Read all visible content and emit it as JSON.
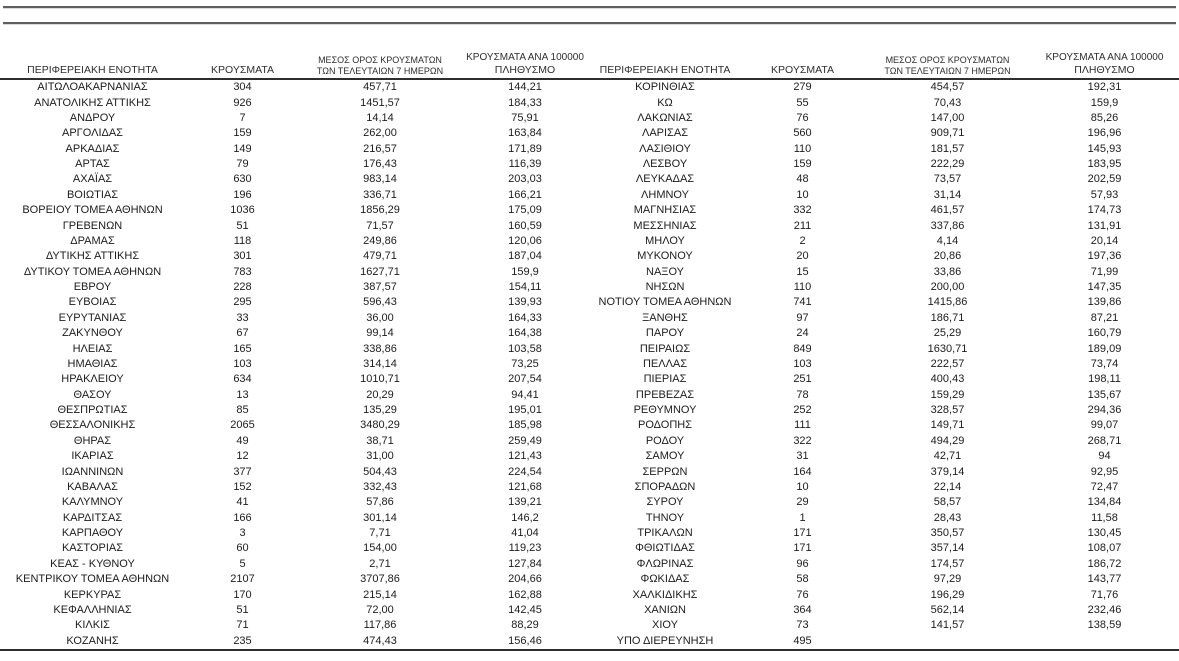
{
  "table": {
    "columns": [
      {
        "line1": "ΠΕΡΙΦΕΡΕΙΑΚΗ ΕΝΟΤΗΤΑ",
        "line2": ""
      },
      {
        "line1": "ΚΡΟΥΣΜΑΤΑ",
        "line2": ""
      },
      {
        "line1": "ΜΕΣΟΣ ΟΡΟΣ ΚΡΟΥΣΜΑΤΩΝ",
        "line2": "ΤΩΝ ΤΕΛΕΥΤΑΙΩΝ 7 ΗΜΕΡΩΝ"
      },
      {
        "line1": "ΚΡΟΥΣΜΑΤΑ ΑΝΑ 100000",
        "line2": "ΠΛΗΘΥΣΜΟ"
      }
    ],
    "left_rows": [
      {
        "region": "ΑΙΤΩΛΟΑΚΑΡΝΑΝΙΑΣ",
        "cases": "304",
        "avg7": "457,71",
        "per100k": "144,21"
      },
      {
        "region": "ΑΝΑΤΟΛΙΚΗΣ ΑΤΤΙΚΗΣ",
        "cases": "926",
        "avg7": "1451,57",
        "per100k": "184,33"
      },
      {
        "region": "ΑΝΔΡΟΥ",
        "cases": "7",
        "avg7": "14,14",
        "per100k": "75,91"
      },
      {
        "region": "ΑΡΓΟΛΙΔΑΣ",
        "cases": "159",
        "avg7": "262,00",
        "per100k": "163,84"
      },
      {
        "region": "ΑΡΚΑΔΙΑΣ",
        "cases": "149",
        "avg7": "216,57",
        "per100k": "171,89"
      },
      {
        "region": "ΑΡΤΑΣ",
        "cases": "79",
        "avg7": "176,43",
        "per100k": "116,39"
      },
      {
        "region": "ΑΧΑΪΑΣ",
        "cases": "630",
        "avg7": "983,14",
        "per100k": "203,03"
      },
      {
        "region": "ΒΟΙΩΤΙΑΣ",
        "cases": "196",
        "avg7": "336,71",
        "per100k": "166,21"
      },
      {
        "region": "ΒΟΡΕΙΟΥ ΤΟΜΕΑ ΑΘΗΝΩΝ",
        "cases": "1036",
        "avg7": "1856,29",
        "per100k": "175,09"
      },
      {
        "region": "ΓΡΕΒΕΝΩΝ",
        "cases": "51",
        "avg7": "71,57",
        "per100k": "160,59"
      },
      {
        "region": "ΔΡΑΜΑΣ",
        "cases": "118",
        "avg7": "249,86",
        "per100k": "120,06"
      },
      {
        "region": "ΔΥΤΙΚΗΣ ΑΤΤΙΚΗΣ",
        "cases": "301",
        "avg7": "479,71",
        "per100k": "187,04"
      },
      {
        "region": "ΔΥΤΙΚΟΥ ΤΟΜΕΑ ΑΘΗΝΩΝ",
        "cases": "783",
        "avg7": "1627,71",
        "per100k": "159,9"
      },
      {
        "region": "ΕΒΡΟΥ",
        "cases": "228",
        "avg7": "387,57",
        "per100k": "154,11"
      },
      {
        "region": "ΕΥΒΟΙΑΣ",
        "cases": "295",
        "avg7": "596,43",
        "per100k": "139,93"
      },
      {
        "region": "ΕΥΡΥΤΑΝΙΑΣ",
        "cases": "33",
        "avg7": "36,00",
        "per100k": "164,33"
      },
      {
        "region": "ΖΑΚΥΝΘΟΥ",
        "cases": "67",
        "avg7": "99,14",
        "per100k": "164,38"
      },
      {
        "region": "ΗΛΕΙΑΣ",
        "cases": "165",
        "avg7": "338,86",
        "per100k": "103,58"
      },
      {
        "region": "ΗΜΑΘΙΑΣ",
        "cases": "103",
        "avg7": "314,14",
        "per100k": "73,25"
      },
      {
        "region": "ΗΡΑΚΛΕΙΟΥ",
        "cases": "634",
        "avg7": "1010,71",
        "per100k": "207,54"
      },
      {
        "region": "ΘΑΣΟΥ",
        "cases": "13",
        "avg7": "20,29",
        "per100k": "94,41"
      },
      {
        "region": "ΘΕΣΠΡΩΤΙΑΣ",
        "cases": "85",
        "avg7": "135,29",
        "per100k": "195,01"
      },
      {
        "region": "ΘΕΣΣΑΛΟΝΙΚΗΣ",
        "cases": "2065",
        "avg7": "3480,29",
        "per100k": "185,98"
      },
      {
        "region": "ΘΗΡΑΣ",
        "cases": "49",
        "avg7": "38,71",
        "per100k": "259,49"
      },
      {
        "region": "ΙΚΑΡΙΑΣ",
        "cases": "12",
        "avg7": "31,00",
        "per100k": "121,43"
      },
      {
        "region": "ΙΩΑΝΝΙΝΩΝ",
        "cases": "377",
        "avg7": "504,43",
        "per100k": "224,54"
      },
      {
        "region": "ΚΑΒΑΛΑΣ",
        "cases": "152",
        "avg7": "332,43",
        "per100k": "121,68"
      },
      {
        "region": "ΚΑΛΥΜΝΟΥ",
        "cases": "41",
        "avg7": "57,86",
        "per100k": "139,21"
      },
      {
        "region": "ΚΑΡΔΙΤΣΑΣ",
        "cases": "166",
        "avg7": "301,14",
        "per100k": "146,2"
      },
      {
        "region": "ΚΑΡΠΑΘΟΥ",
        "cases": "3",
        "avg7": "7,71",
        "per100k": "41,04"
      },
      {
        "region": "ΚΑΣΤΟΡΙΑΣ",
        "cases": "60",
        "avg7": "154,00",
        "per100k": "119,23"
      },
      {
        "region": "ΚΕΑΣ - ΚΥΘΝΟΥ",
        "cases": "5",
        "avg7": "2,71",
        "per100k": "127,84"
      },
      {
        "region": "ΚΕΝΤΡΙΚΟΥ ΤΟΜΕΑ ΑΘΗΝΩΝ",
        "cases": "2107",
        "avg7": "3707,86",
        "per100k": "204,66"
      },
      {
        "region": "ΚΕΡΚΥΡΑΣ",
        "cases": "170",
        "avg7": "215,14",
        "per100k": "162,88"
      },
      {
        "region": "ΚΕΦΑΛΛΗΝΙΑΣ",
        "cases": "51",
        "avg7": "72,00",
        "per100k": "142,45"
      },
      {
        "region": "ΚΙΛΚΙΣ",
        "cases": "71",
        "avg7": "117,86",
        "per100k": "88,29"
      },
      {
        "region": "ΚΟΖΑΝΗΣ",
        "cases": "235",
        "avg7": "474,43",
        "per100k": "156,46"
      }
    ],
    "right_rows": [
      {
        "region": "ΚΟΡΙΝΘΙΑΣ",
        "cases": "279",
        "avg7": "454,57",
        "per100k": "192,31"
      },
      {
        "region": "ΚΩ",
        "cases": "55",
        "avg7": "70,43",
        "per100k": "159,9"
      },
      {
        "region": "ΛΑΚΩΝΙΑΣ",
        "cases": "76",
        "avg7": "147,00",
        "per100k": "85,26"
      },
      {
        "region": "ΛΑΡΙΣΑΣ",
        "cases": "560",
        "avg7": "909,71",
        "per100k": "196,96"
      },
      {
        "region": "ΛΑΣΙΘΙΟΥ",
        "cases": "110",
        "avg7": "181,57",
        "per100k": "145,93"
      },
      {
        "region": "ΛΕΣΒΟΥ",
        "cases": "159",
        "avg7": "222,29",
        "per100k": "183,95"
      },
      {
        "region": "ΛΕΥΚΑΔΑΣ",
        "cases": "48",
        "avg7": "73,57",
        "per100k": "202,59"
      },
      {
        "region": "ΛΗΜΝΟΥ",
        "cases": "10",
        "avg7": "31,14",
        "per100k": "57,93"
      },
      {
        "region": "ΜΑΓΝΗΣΙΑΣ",
        "cases": "332",
        "avg7": "461,57",
        "per100k": "174,73"
      },
      {
        "region": "ΜΕΣΣΗΝΙΑΣ",
        "cases": "211",
        "avg7": "337,86",
        "per100k": "131,91"
      },
      {
        "region": "ΜΗΛΟΥ",
        "cases": "2",
        "avg7": "4,14",
        "per100k": "20,14"
      },
      {
        "region": "ΜΥΚΟΝΟΥ",
        "cases": "20",
        "avg7": "20,86",
        "per100k": "197,36"
      },
      {
        "region": "ΝΑΞΟΥ",
        "cases": "15",
        "avg7": "33,86",
        "per100k": "71,99"
      },
      {
        "region": "ΝΗΣΩΝ",
        "cases": "110",
        "avg7": "200,00",
        "per100k": "147,35"
      },
      {
        "region": "ΝΟΤΙΟΥ ΤΟΜΕΑ ΑΘΗΝΩΝ",
        "cases": "741",
        "avg7": "1415,86",
        "per100k": "139,86"
      },
      {
        "region": "ΞΑΝΘΗΣ",
        "cases": "97",
        "avg7": "186,71",
        "per100k": "87,21"
      },
      {
        "region": "ΠΑΡΟΥ",
        "cases": "24",
        "avg7": "25,29",
        "per100k": "160,79"
      },
      {
        "region": "ΠΕΙΡΑΙΩΣ",
        "cases": "849",
        "avg7": "1630,71",
        "per100k": "189,09"
      },
      {
        "region": "ΠΕΛΛΑΣ",
        "cases": "103",
        "avg7": "222,57",
        "per100k": "73,74"
      },
      {
        "region": "ΠΙΕΡΙΑΣ",
        "cases": "251",
        "avg7": "400,43",
        "per100k": "198,11"
      },
      {
        "region": "ΠΡΕΒΕΖΑΣ",
        "cases": "78",
        "avg7": "159,29",
        "per100k": "135,67"
      },
      {
        "region": "ΡΕΘΥΜΝΟΥ",
        "cases": "252",
        "avg7": "328,57",
        "per100k": "294,36"
      },
      {
        "region": "ΡΟΔΟΠΗΣ",
        "cases": "111",
        "avg7": "149,71",
        "per100k": "99,07"
      },
      {
        "region": "ΡΟΔΟΥ",
        "cases": "322",
        "avg7": "494,29",
        "per100k": "268,71"
      },
      {
        "region": "ΣΑΜΟΥ",
        "cases": "31",
        "avg7": "42,71",
        "per100k": "94"
      },
      {
        "region": "ΣΕΡΡΩΝ",
        "cases": "164",
        "avg7": "379,14",
        "per100k": "92,95"
      },
      {
        "region": "ΣΠΟΡΑΔΩΝ",
        "cases": "10",
        "avg7": "22,14",
        "per100k": "72,47"
      },
      {
        "region": "ΣΥΡΟΥ",
        "cases": "29",
        "avg7": "58,57",
        "per100k": "134,84"
      },
      {
        "region": "ΤΗΝΟΥ",
        "cases": "1",
        "avg7": "28,43",
        "per100k": "11,58"
      },
      {
        "region": "ΤΡΙΚΑΛΩΝ",
        "cases": "171",
        "avg7": "350,57",
        "per100k": "130,45"
      },
      {
        "region": "ΦΘΙΩΤΙΔΑΣ",
        "cases": "171",
        "avg7": "357,14",
        "per100k": "108,07"
      },
      {
        "region": "ΦΛΩΡΙΝΑΣ",
        "cases": "96",
        "avg7": "174,57",
        "per100k": "186,72"
      },
      {
        "region": "ΦΩΚΙΔΑΣ",
        "cases": "58",
        "avg7": "97,29",
        "per100k": "143,77"
      },
      {
        "region": "ΧΑΛΚΙΔΙΚΗΣ",
        "cases": "76",
        "avg7": "196,29",
        "per100k": "71,76"
      },
      {
        "region": "ΧΑΝΙΩΝ",
        "cases": "364",
        "avg7": "562,14",
        "per100k": "232,46"
      },
      {
        "region": "ΧΙΟΥ",
        "cases": "73",
        "avg7": "141,57",
        "per100k": "138,59"
      },
      {
        "region": "ΥΠΟ ΔΙΕΡΕΥΝΗΣΗ",
        "cases": "495",
        "avg7": "",
        "per100k": ""
      }
    ]
  }
}
